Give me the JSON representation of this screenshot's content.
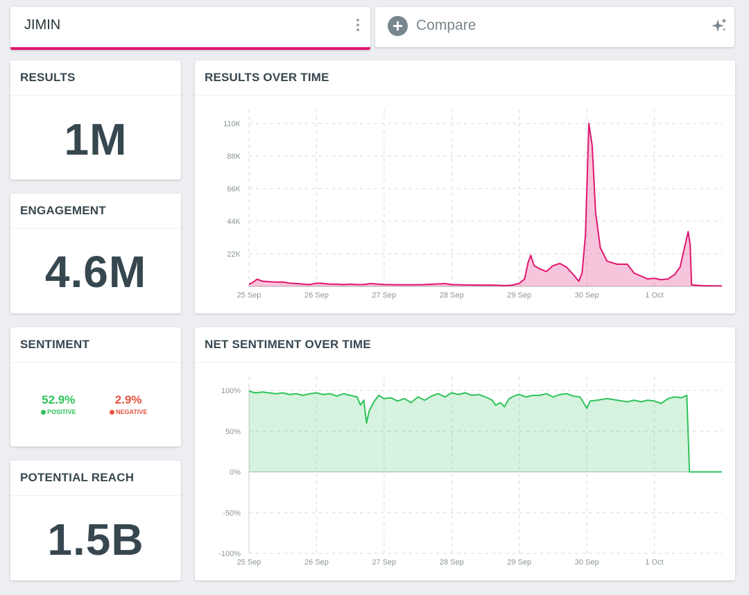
{
  "query": {
    "name": "JIMIN"
  },
  "compare": {
    "label": "Compare"
  },
  "colors": {
    "accent": "#e0166f",
    "positive": "#2fc25b",
    "negative": "#e55541",
    "text": "#37474f"
  },
  "metrics": {
    "results": {
      "title": "RESULTS",
      "value": "1M"
    },
    "engagement": {
      "title": "ENGAGEMENT",
      "value": "4.6M"
    },
    "sentiment": {
      "title": "SENTIMENT",
      "positive_pct": "52.9%",
      "positive_label": "POSITIVE",
      "negative_pct": "2.9%",
      "negative_label": "NEGATIVE"
    },
    "reach": {
      "title": "POTENTIAL REACH",
      "value": "1.5B"
    }
  },
  "icons": [
    "more-vert-icon",
    "plus-circle-icon",
    "sparkle-icon",
    "positive-dot-icon",
    "negative-dot-icon"
  ],
  "chart_data": [
    {
      "type": "area",
      "title": "RESULTS OVER TIME",
      "x_ticks": [
        "25 Sep",
        "26 Sep",
        "27 Sep",
        "28 Sep",
        "29 Sep",
        "30 Sep",
        "1 Oct"
      ],
      "y_ticks": [
        "110K",
        "88K",
        "66K",
        "44K",
        "22K"
      ],
      "ylim": [
        0,
        110000
      ],
      "xlim": [
        0,
        7
      ],
      "grid": true,
      "color": "#e0166f",
      "series": [
        {
          "points": [
            [
              0.0,
              1500
            ],
            [
              0.05,
              2500
            ],
            [
              0.12,
              4800
            ],
            [
              0.2,
              3500
            ],
            [
              0.3,
              3200
            ],
            [
              0.4,
              2900
            ],
            [
              0.5,
              3000
            ],
            [
              0.6,
              2200
            ],
            [
              0.7,
              1900
            ],
            [
              0.8,
              1600
            ],
            [
              0.9,
              1200
            ],
            [
              1.0,
              2200
            ],
            [
              1.1,
              2000
            ],
            [
              1.2,
              1500
            ],
            [
              1.3,
              1500
            ],
            [
              1.4,
              1200
            ],
            [
              1.5,
              1500
            ],
            [
              1.6,
              1200
            ],
            [
              1.7,
              1300
            ],
            [
              1.8,
              1900
            ],
            [
              1.9,
              1600
            ],
            [
              2.0,
              1300
            ],
            [
              2.2,
              1100
            ],
            [
              2.4,
              1100
            ],
            [
              2.6,
              1200
            ],
            [
              2.8,
              1700
            ],
            [
              2.9,
              1900
            ],
            [
              3.0,
              1200
            ],
            [
              3.2,
              1000
            ],
            [
              3.4,
              900
            ],
            [
              3.6,
              900
            ],
            [
              3.8,
              600
            ],
            [
              3.9,
              900
            ],
            [
              4.0,
              2000
            ],
            [
              4.08,
              5000
            ],
            [
              4.13,
              16000
            ],
            [
              4.17,
              21000
            ],
            [
              4.22,
              14000
            ],
            [
              4.3,
              12000
            ],
            [
              4.4,
              10000
            ],
            [
              4.5,
              14000
            ],
            [
              4.6,
              15500
            ],
            [
              4.7,
              13000
            ],
            [
              4.8,
              8000
            ],
            [
              4.88,
              3500
            ],
            [
              4.93,
              9000
            ],
            [
              4.98,
              35000
            ],
            [
              5.03,
              110000
            ],
            [
              5.08,
              95000
            ],
            [
              5.13,
              50000
            ],
            [
              5.2,
              26000
            ],
            [
              5.3,
              17000
            ],
            [
              5.45,
              15000
            ],
            [
              5.6,
              15000
            ],
            [
              5.7,
              9000
            ],
            [
              5.8,
              7000
            ],
            [
              5.9,
              5000
            ],
            [
              6.0,
              5500
            ],
            [
              6.1,
              4500
            ],
            [
              6.2,
              5000
            ],
            [
              6.3,
              8000
            ],
            [
              6.38,
              13000
            ],
            [
              6.45,
              27000
            ],
            [
              6.5,
              37000
            ],
            [
              6.53,
              28000
            ],
            [
              6.55,
              1000
            ],
            [
              6.7,
              500
            ],
            [
              7.0,
              300
            ]
          ]
        }
      ]
    },
    {
      "type": "area",
      "title": "NET SENTIMENT OVER TIME",
      "x_ticks": [
        "25 Sep",
        "26 Sep",
        "27 Sep",
        "28 Sep",
        "29 Sep",
        "30 Sep",
        "1 Oct"
      ],
      "y_ticks": [
        "100%",
        "50%",
        "0%",
        "-50%",
        "-100%"
      ],
      "ylim": [
        -100,
        100
      ],
      "xlim": [
        0,
        7
      ],
      "grid": true,
      "color": "#2fc25b",
      "series": [
        {
          "points": [
            [
              0.0,
              99
            ],
            [
              0.1,
              97
            ],
            [
              0.2,
              98
            ],
            [
              0.3,
              97
            ],
            [
              0.4,
              96
            ],
            [
              0.5,
              97
            ],
            [
              0.6,
              95
            ],
            [
              0.7,
              96
            ],
            [
              0.8,
              94
            ],
            [
              0.9,
              96
            ],
            [
              1.0,
              97
            ],
            [
              1.1,
              95
            ],
            [
              1.2,
              96
            ],
            [
              1.3,
              93
            ],
            [
              1.4,
              96
            ],
            [
              1.5,
              94
            ],
            [
              1.6,
              92
            ],
            [
              1.65,
              82
            ],
            [
              1.7,
              88
            ],
            [
              1.74,
              60
            ],
            [
              1.78,
              75
            ],
            [
              1.85,
              86
            ],
            [
              1.92,
              94
            ],
            [
              2.0,
              90
            ],
            [
              2.1,
              91
            ],
            [
              2.2,
              87
            ],
            [
              2.3,
              90
            ],
            [
              2.4,
              85
            ],
            [
              2.5,
              92
            ],
            [
              2.6,
              88
            ],
            [
              2.7,
              93
            ],
            [
              2.8,
              96
            ],
            [
              2.9,
              92
            ],
            [
              3.0,
              97
            ],
            [
              3.1,
              95
            ],
            [
              3.2,
              97
            ],
            [
              3.3,
              94
            ],
            [
              3.4,
              95
            ],
            [
              3.5,
              92
            ],
            [
              3.6,
              88
            ],
            [
              3.65,
              82
            ],
            [
              3.72,
              85
            ],
            [
              3.78,
              80
            ],
            [
              3.85,
              90
            ],
            [
              3.95,
              94
            ],
            [
              4.0,
              95
            ],
            [
              4.1,
              92
            ],
            [
              4.2,
              94
            ],
            [
              4.3,
              94
            ],
            [
              4.4,
              96
            ],
            [
              4.5,
              92
            ],
            [
              4.6,
              95
            ],
            [
              4.7,
              96
            ],
            [
              4.8,
              93
            ],
            [
              4.9,
              92
            ],
            [
              4.95,
              85
            ],
            [
              5.0,
              78
            ],
            [
              5.05,
              87
            ],
            [
              5.15,
              88
            ],
            [
              5.3,
              90
            ],
            [
              5.45,
              88
            ],
            [
              5.6,
              86
            ],
            [
              5.7,
              88
            ],
            [
              5.8,
              86
            ],
            [
              5.9,
              88
            ],
            [
              6.0,
              87
            ],
            [
              6.1,
              84
            ],
            [
              6.2,
              90
            ],
            [
              6.3,
              92
            ],
            [
              6.4,
              91
            ],
            [
              6.48,
              94
            ],
            [
              6.52,
              0
            ],
            [
              7.0,
              0
            ]
          ]
        }
      ]
    }
  ]
}
